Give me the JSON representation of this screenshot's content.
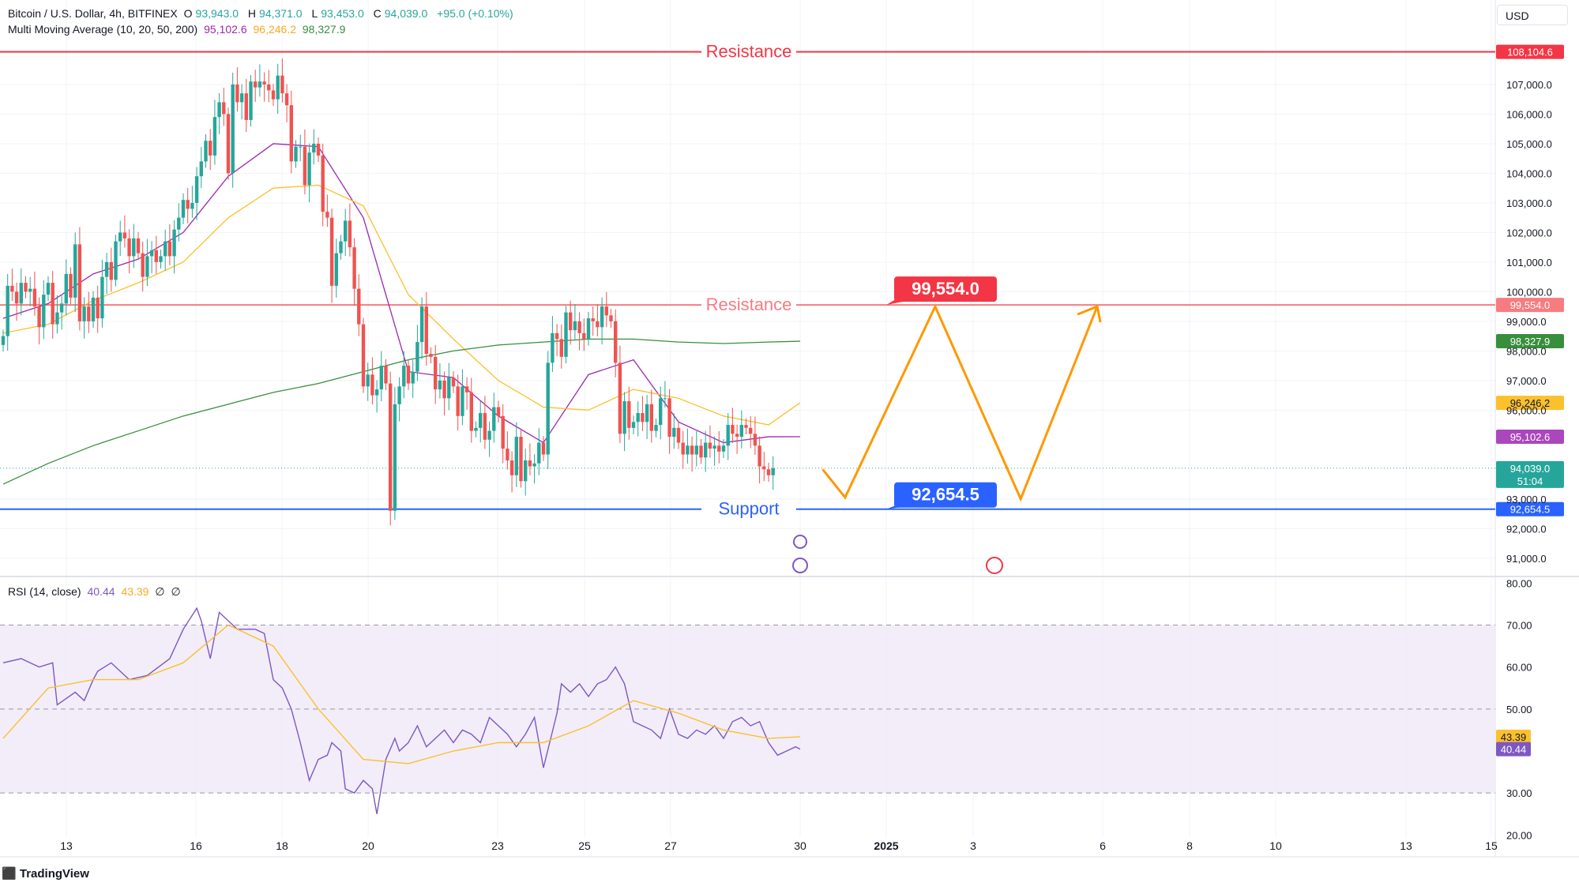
{
  "header": {
    "symbol": "Bitcoin / U.S. Dollar, 4h, BITFINEX",
    "open_label": "O",
    "open": "93,943.0",
    "high_label": "H",
    "high": "94,371.0",
    "low_label": "L",
    "low": "93,453.0",
    "close_label": "C",
    "close": "94,039.0",
    "change": "+95.0 (+0.10%)",
    "ma_title": "Multi Moving Average (10, 20, 50, 200)",
    "ma10": "95,102.6",
    "ma20": "96,246.2",
    "ma50": "98,327.9",
    "rsi_title": "RSI (14, close)",
    "rsi_val": "40.44",
    "rsi_ma": "43.39",
    "ex1": "∅",
    "ex2": "∅"
  },
  "currency": "USD",
  "brand": "TradingView",
  "colors": {
    "up": "#26a69a",
    "down": "#ef5350",
    "resistance": "#f23645",
    "support": "#2962ff",
    "ma10": "#9c27b0",
    "ma20": "#fbc02d",
    "ma200": "#388e3c",
    "projection": "#ff9800",
    "rsi": "#7e57c2"
  },
  "chart_data": [
    {
      "type": "candlestick",
      "title": "Bitcoin / U.S. Dollar, 4h, BITFINEX",
      "x_ticks": [
        "13",
        "16",
        "18",
        "20",
        "23",
        "25",
        "27",
        "30",
        "2025",
        "3",
        "6",
        "8",
        "10",
        "13",
        "15"
      ],
      "y_ticks": [
        "91,000.0",
        "92,000.0",
        "93,000.0",
        "96,000.0",
        "97,000.0",
        "98,000.0",
        "99,000.0",
        "100,000.0",
        "101,000.0",
        "102,000.0",
        "103,000.0",
        "104,000.0",
        "105,000.0",
        "106,000.0",
        "107,000.0"
      ],
      "ylim": [
        90700,
        109000
      ],
      "grid": true,
      "levels": [
        {
          "label": "Resistance",
          "value": 108104.6,
          "tag": "108,104.6"
        },
        {
          "label": "Resistance",
          "value": 99554.0,
          "tag": "99,554.0"
        },
        {
          "label": "Support",
          "value": 92654.5,
          "tag": "92,654.5"
        }
      ],
      "price_tags": [
        {
          "text": "98,327.9",
          "value": 98327.9,
          "series": "ma200"
        },
        {
          "text": "96,246.2",
          "value": 96246.2,
          "series": "ma20"
        },
        {
          "text": "95,102.6",
          "value": 95102.6,
          "series": "ma10"
        },
        {
          "text": "94,039.0",
          "value": 94039.0,
          "series": "price",
          "sub": "51:04"
        }
      ],
      "callouts": [
        {
          "text": "99,554.0",
          "value": 99554.0
        },
        {
          "text": "92,654.5",
          "value": 92654.5
        }
      ],
      "closes": [
        98500,
        100200,
        100000,
        99600,
        100300,
        100000,
        100100,
        99500,
        98800,
        99900,
        100300,
        98900,
        99300,
        99600,
        100600,
        99800,
        101600,
        99000,
        99500,
        99000,
        99800,
        99100,
        100500,
        101000,
        100400,
        101700,
        102000,
        101800,
        101200,
        101800,
        101300,
        100500,
        101200,
        101400,
        101000,
        101200,
        101700,
        101200,
        102100,
        102500,
        103100,
        102800,
        103000,
        103900,
        104400,
        105100,
        104600,
        105900,
        106400,
        106000,
        104000,
        107000,
        106400,
        106700,
        105800,
        107100,
        106900,
        107100,
        107000,
        106800,
        106500,
        107300,
        106700,
        106300,
        104400,
        104900,
        104900,
        103600,
        104700,
        105000,
        104600,
        102700,
        102500,
        100200,
        101300,
        101700,
        102400,
        101500,
        100100,
        98900,
        96800,
        97200,
        96500,
        96700,
        97500,
        96900,
        92600,
        96200,
        96800,
        97500,
        96900,
        97300,
        98300,
        99500,
        97900,
        97800,
        96700,
        97000,
        96400,
        97100,
        96800,
        95800,
        96800,
        96600,
        95300,
        95400,
        95900,
        95000,
        95300,
        96100,
        95800,
        94700,
        94300,
        93800,
        95100,
        93600,
        94300,
        94100,
        94200,
        94900,
        94500,
        97600,
        98600,
        98400,
        97800,
        99300,
        98700,
        99000,
        98600,
        98400,
        99100,
        99000,
        98800,
        99500,
        99200,
        99000,
        97600,
        95200,
        96300,
        95400,
        95600,
        95900,
        95600,
        96200,
        95300,
        95500,
        96400,
        96400,
        95100,
        95400,
        94900,
        94500,
        94800,
        94500,
        94800,
        94400,
        94900,
        94700,
        94800,
        94600,
        94800,
        95500,
        95200,
        95100,
        95500,
        95400,
        95200,
        94800,
        94100,
        94000,
        93800,
        94039
      ],
      "series": [
        {
          "name": "MA 10",
          "color": "#9c27b0",
          "x": [
            0,
            10,
            20,
            30,
            40,
            50,
            60,
            70,
            80,
            90,
            100,
            110,
            120,
            130,
            140,
            150,
            160,
            170,
            177
          ],
          "y": [
            99100,
            99600,
            100600,
            101100,
            102000,
            103900,
            105000,
            104900,
            102500,
            97300,
            97100,
            95800,
            94900,
            97200,
            97700,
            95600,
            94900,
            95100,
            95102.6
          ]
        },
        {
          "name": "MA 20",
          "color": "#fbc02d",
          "x": [
            0,
            10,
            20,
            30,
            40,
            50,
            60,
            70,
            80,
            90,
            100,
            110,
            120,
            130,
            140,
            150,
            160,
            170,
            177
          ],
          "y": [
            98600,
            98900,
            99700,
            100300,
            101000,
            102500,
            103500,
            103600,
            102900,
            99900,
            98400,
            97000,
            96100,
            96000,
            96700,
            96400,
            95800,
            95500,
            96246.2
          ]
        },
        {
          "name": "MA 200",
          "color": "#388e3c",
          "x": [
            0,
            10,
            20,
            30,
            40,
            50,
            60,
            70,
            80,
            90,
            100,
            110,
            120,
            130,
            140,
            150,
            160,
            170,
            177
          ],
          "y": [
            93500,
            94200,
            94800,
            95300,
            95800,
            96200,
            96600,
            96900,
            97300,
            97700,
            98000,
            98200,
            98300,
            98400,
            98400,
            98300,
            98250,
            98300,
            98327.9
          ]
        }
      ],
      "projection": {
        "color": "#ff9800",
        "points": [
          [
            182,
            94000
          ],
          [
            187,
            93050
          ],
          [
            207,
            99500
          ],
          [
            226,
            93000
          ],
          [
            243,
            99500
          ]
        ]
      }
    },
    {
      "type": "line",
      "title": "RSI (14, close)",
      "y_ticks": [
        "20.00",
        "30.00",
        "50.00",
        "60.00",
        "70.00",
        "80.00"
      ],
      "ylim": [
        19.5,
        81
      ],
      "band": [
        30,
        70
      ],
      "tags": [
        {
          "text": "43.39",
          "value": 43.39
        },
        {
          "text": "40.44",
          "value": 40.44
        }
      ],
      "series": [
        {
          "name": "RSI",
          "color": "#7e57c2",
          "x": [
            0,
            4,
            8,
            11,
            12,
            16,
            18,
            20,
            21,
            24,
            28,
            32,
            37,
            40,
            43,
            44,
            46,
            48,
            50,
            52,
            54,
            56,
            58,
            60,
            62,
            64,
            66,
            68,
            70,
            72,
            73,
            75,
            76,
            78,
            80,
            82,
            83,
            85,
            87,
            88,
            90,
            92,
            94,
            96,
            98,
            100,
            102,
            104,
            106,
            108,
            110,
            112,
            114,
            116,
            118,
            120,
            123,
            124,
            126,
            128,
            130,
            132,
            134,
            136,
            138,
            140,
            142,
            144,
            146,
            148,
            150,
            152,
            154,
            156,
            158,
            160,
            162,
            164,
            166,
            168,
            170,
            172,
            174,
            176,
            177
          ],
          "y": [
            61,
            62,
            60,
            61,
            51,
            54,
            52,
            57,
            59,
            61,
            57,
            58,
            62,
            69,
            74,
            71,
            62,
            73,
            71,
            69,
            69,
            69,
            68,
            57,
            55,
            50,
            42,
            33,
            38,
            39,
            42,
            40,
            31,
            30,
            33,
            31,
            25,
            38,
            43,
            40,
            42,
            46,
            41,
            43,
            45,
            42,
            45,
            44,
            42,
            48,
            46,
            44,
            41,
            44,
            48,
            36,
            49,
            56,
            54,
            56,
            53,
            56,
            57,
            60,
            56,
            47,
            46,
            45,
            43,
            50,
            44,
            43,
            45,
            44,
            46,
            43,
            47,
            48,
            46,
            47,
            42,
            39,
            40,
            41,
            40.44
          ]
        },
        {
          "name": "MA",
          "color": "#fbc02d",
          "x": [
            0,
            10,
            20,
            30,
            40,
            50,
            60,
            70,
            80,
            90,
            100,
            110,
            120,
            130,
            140,
            150,
            160,
            170,
            177
          ],
          "y": [
            43,
            55,
            57,
            57,
            61,
            70,
            65,
            50,
            38,
            37,
            40,
            42,
            42,
            46,
            52,
            49,
            45,
            43,
            43.39
          ]
        }
      ]
    }
  ]
}
